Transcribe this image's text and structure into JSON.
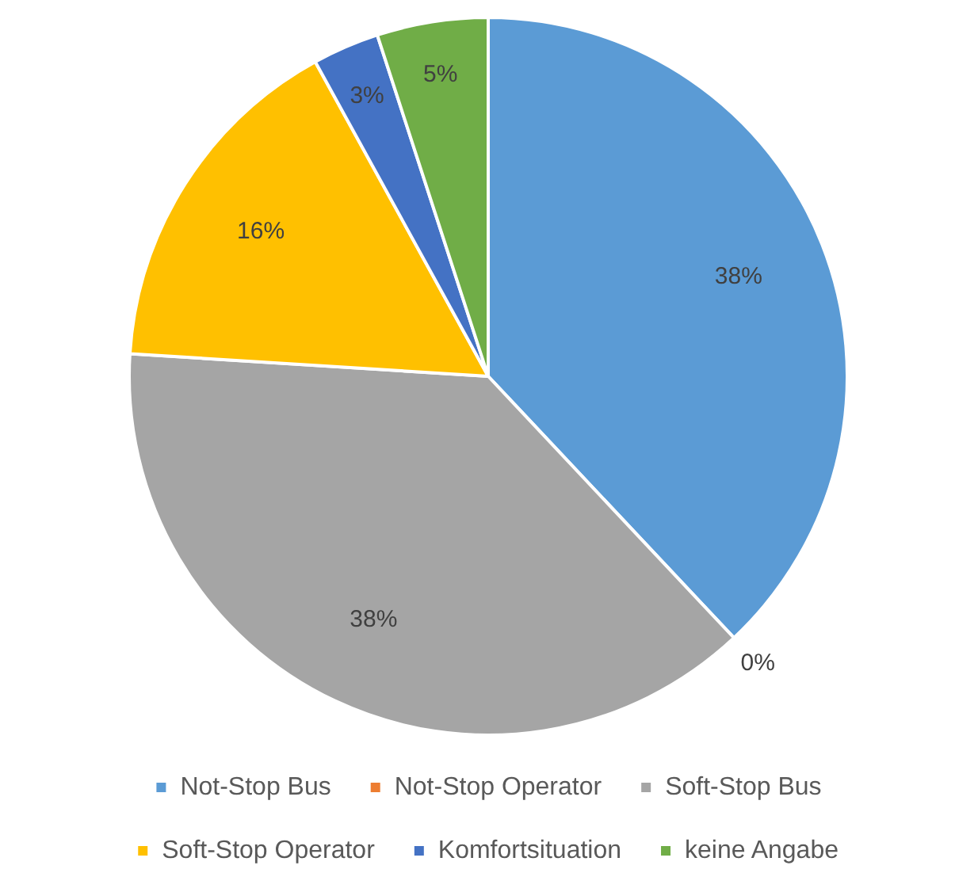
{
  "chart_data": {
    "type": "pie",
    "categories": [
      "Not-Stop Bus",
      "Not-Stop Operator",
      "Soft-Stop Bus",
      "Soft-Stop Operator",
      "Komfortsituation",
      "keine Angabe"
    ],
    "values": [
      38,
      0,
      38,
      16,
      3,
      5
    ],
    "colors": [
      "#5b9bd5",
      "#ed7d31",
      "#a5a5a5",
      "#ffc000",
      "#4472c4",
      "#70ad47"
    ],
    "value_labels": [
      "38%",
      "0%",
      "38%",
      "16%",
      "3%",
      "5%"
    ],
    "legend": "bottom"
  }
}
